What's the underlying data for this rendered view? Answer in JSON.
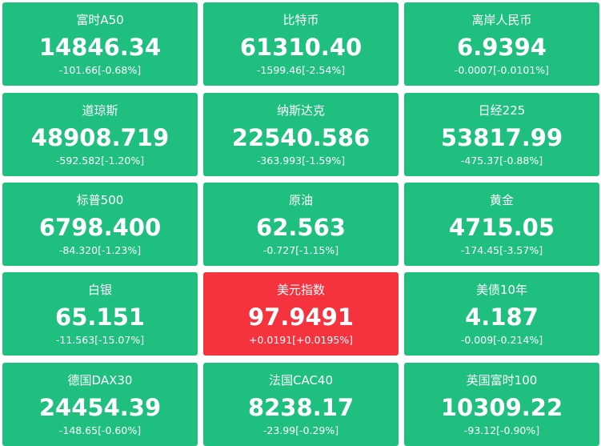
{
  "tiles": [
    {
      "name": "富时A50",
      "price": "14846.34",
      "change": "-101.66[-0.68%]",
      "color": "#1fc07f"
    },
    {
      "name": "比特币",
      "price": "61310.40",
      "change": "-1599.46[-2.54%]",
      "color": "#1fc07f"
    },
    {
      "name": "离岸人民币",
      "price": "6.9394",
      "change": "-0.0007[-0.0101%]",
      "color": "#1fc07f"
    },
    {
      "name": "道琼斯",
      "price": "48908.719",
      "change": "-592.582[-1.20%]",
      "color": "#1fc07f"
    },
    {
      "name": "纳斯达克",
      "price": "22540.586",
      "change": "-363.993[-1.59%]",
      "color": "#1fc07f"
    },
    {
      "name": "日经225",
      "price": "53817.99",
      "change": "-475.37[-0.88%]",
      "color": "#1fc07f"
    },
    {
      "name": "标普500",
      "price": "6798.400",
      "change": "-84.320[-1.23%]",
      "color": "#1fc07f"
    },
    {
      "name": "原油",
      "price": "62.563",
      "change": "-0.727[-1.15%]",
      "color": "#1fc07f"
    },
    {
      "name": "黄金",
      "price": "4715.05",
      "change": "-174.45[-3.57%]",
      "color": "#1fc07f"
    },
    {
      "name": "白银",
      "price": "65.151",
      "change": "-11.563[-15.07%]",
      "color": "#1fc07f"
    },
    {
      "name": "美元指数",
      "price": "97.9491",
      "change": "+0.0191[+0.0195%]",
      "color": "#f5333f"
    },
    {
      "name": "美债10年",
      "price": "4.187",
      "change": "-0.009[-0.214%]",
      "color": "#1fc07f"
    },
    {
      "name": "德国DAX30",
      "price": "24454.39",
      "change": "-148.65[-0.60%]",
      "color": "#1fc07f"
    },
    {
      "name": "法国CAC40",
      "price": "8238.17",
      "change": "-23.99[-0.29%]",
      "color": "#1fc07f"
    },
    {
      "name": "英国富时100",
      "price": "10309.22",
      "change": "-93.12[-0.90%]",
      "color": "#1fc07f"
    }
  ]
}
